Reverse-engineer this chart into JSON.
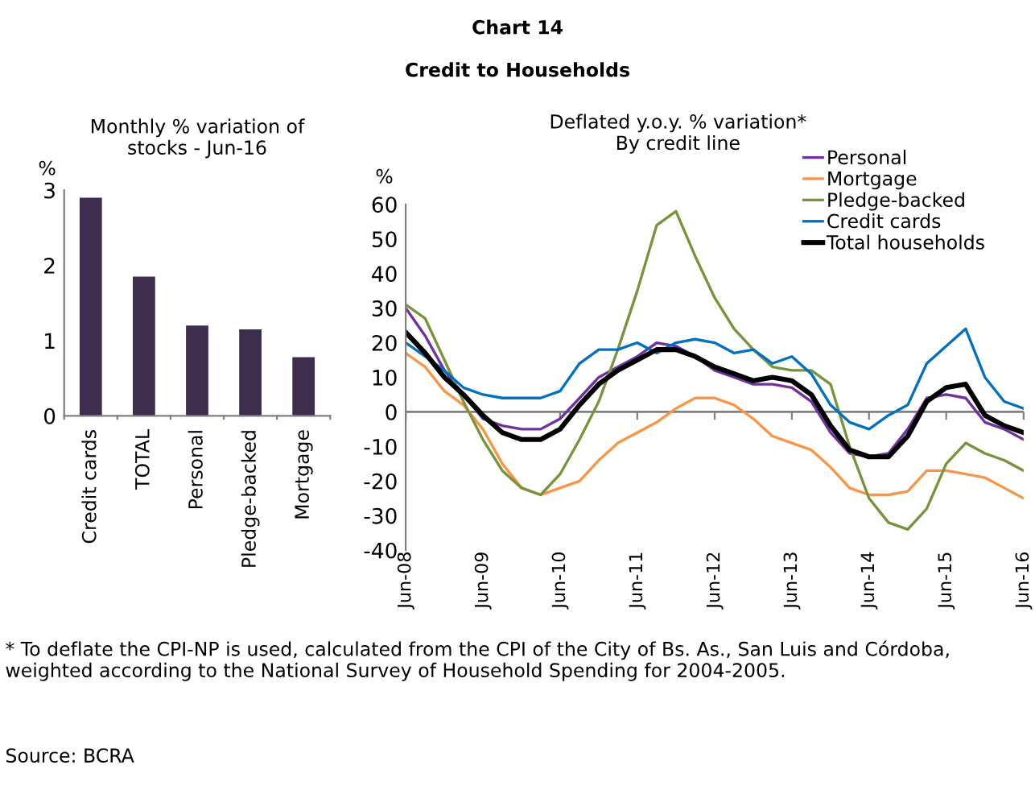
{
  "chart_data": [
    {
      "type": "bar",
      "title": "Monthly % variation of\nstocks - Jun-16",
      "ylabel": "%",
      "categories": [
        "Credit cards",
        "TOTAL",
        "Personal",
        "Pledge-backed",
        "Mortgage"
      ],
      "values": [
        2.9,
        1.85,
        1.2,
        1.15,
        0.78
      ],
      "color": "#3e2d4f",
      "ylim": [
        0,
        3
      ],
      "yticks": [
        0,
        1,
        2,
        3
      ],
      "grid": false
    },
    {
      "type": "line",
      "title": "Chart 14\n\nCredit to Households",
      "subtitle": "Deflated y.o.y. % variation*\nBy credit line",
      "ylabel": "%",
      "x": [
        "2008-06",
        "2008-09",
        "2008-12",
        "2009-03",
        "2009-06",
        "2009-09",
        "2009-12",
        "2010-03",
        "2010-06",
        "2010-09",
        "2010-12",
        "2011-03",
        "2011-06",
        "2011-09",
        "2011-12",
        "2012-03",
        "2012-06",
        "2012-09",
        "2012-12",
        "2013-03",
        "2013-06",
        "2013-09",
        "2013-12",
        "2014-03",
        "2014-06",
        "2014-09",
        "2014-12",
        "2015-03",
        "2015-06",
        "2015-09",
        "2015-12",
        "2016-03",
        "2016-06"
      ],
      "series": [
        {
          "name": "Personal",
          "color": "#7030a0",
          "values": [
            30,
            22,
            12,
            5,
            -2,
            -4,
            -5,
            -5,
            -2,
            4,
            10,
            13,
            16,
            20,
            19,
            16,
            12,
            10,
            8,
            8,
            7,
            3,
            -6,
            -12,
            -13,
            -12,
            -5,
            4,
            5,
            4,
            -3,
            -5,
            -8
          ]
        },
        {
          "name": "Mortgage",
          "color": "#f79646",
          "values": [
            17,
            13,
            6,
            2,
            -5,
            -15,
            -22,
            -24,
            -22,
            -20,
            -14,
            -9,
            -6,
            -3,
            1,
            4,
            4,
            2,
            -2,
            -7,
            -9,
            -11,
            -16,
            -22,
            -24,
            -24,
            -23,
            -17,
            -17,
            -18,
            -19,
            -22,
            -25
          ]
        },
        {
          "name": "Pledge-backed",
          "color": "#77933c",
          "values": [
            31,
            27,
            15,
            3,
            -8,
            -17,
            -22,
            -24,
            -18,
            -8,
            3,
            18,
            35,
            54,
            58,
            45,
            33,
            24,
            18,
            13,
            12,
            12,
            8,
            -10,
            -25,
            -32,
            -34,
            -28,
            -15,
            -9,
            -12,
            -14,
            -17
          ]
        },
        {
          "name": "Credit cards",
          "color": "#0070c0",
          "values": [
            20,
            16,
            12,
            7,
            5,
            4,
            4,
            4,
            6,
            14,
            18,
            18,
            20,
            17,
            20,
            21,
            20,
            17,
            18,
            14,
            16,
            11,
            2,
            -3,
            -5,
            -1,
            2,
            14,
            19,
            24,
            10,
            3,
            1
          ]
        },
        {
          "name": "Total households",
          "color": "#000000",
          "values": [
            23,
            17,
            10,
            5,
            -1,
            -6,
            -8,
            -8,
            -5,
            2,
            8,
            12,
            15,
            18,
            18,
            16,
            13,
            11,
            9,
            10,
            9,
            5,
            -4,
            -11,
            -13,
            -13,
            -7,
            3,
            7,
            8,
            -1,
            -4,
            -6
          ]
        }
      ],
      "xlim": [
        "2008-06",
        "2016-06"
      ],
      "xticks": [
        {
          "value": "2008-06",
          "label": "Jun-08"
        },
        {
          "value": "2009-06",
          "label": "Jun-09"
        },
        {
          "value": "2010-06",
          "label": "Jun-10"
        },
        {
          "value": "2011-06",
          "label": "Jun-11"
        },
        {
          "value": "2012-06",
          "label": "Jun-12"
        },
        {
          "value": "2013-06",
          "label": "Jun-13"
        },
        {
          "value": "2014-06",
          "label": "Jun-14"
        },
        {
          "value": "2015-06",
          "label": "Jun-15"
        },
        {
          "value": "2016-06",
          "label": "Jun-16"
        }
      ],
      "ylim": [
        -40,
        60
      ],
      "yticks": [
        -40,
        -30,
        -20,
        -10,
        0,
        10,
        20,
        30,
        40,
        50,
        60
      ],
      "grid": false,
      "ref_lines": [
        {
          "axis": "y",
          "value": 0,
          "color": "#808080"
        }
      ],
      "legend": "top right",
      "marker": "none",
      "line_style": "solid",
      "annotations": [
        "* To deflate the CPI-NP is used, calculated from the CPI of the City of Bs. As., San Luis and Córdoba, weighted according to the National Survey of Household Spending for 2004-2005.",
        "Source: BCRA"
      ]
    }
  ]
}
